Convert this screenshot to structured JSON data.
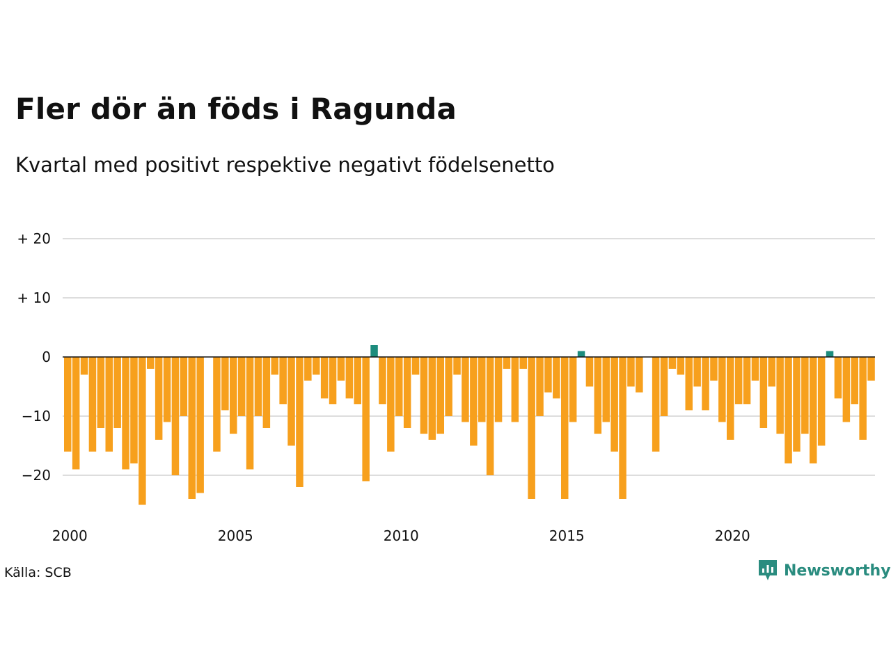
{
  "title": "Fler dör än föds i Ragunda",
  "subtitle": "Kvartal med positivt respektive negativt födelsenetto",
  "source": "Källa: SCB",
  "brand": "Newsworthy",
  "colors": {
    "negative": "#f7a01d",
    "positive": "#1c8c7d",
    "grid": "#dddddd",
    "zero_line": "#111111",
    "brand": "#2a8c7f"
  },
  "chart_data": {
    "type": "bar",
    "x_start": "2000 Q1",
    "ylim": [
      -25,
      20
    ],
    "y_ticks": [
      20,
      10,
      0,
      -10,
      -20
    ],
    "y_tick_labels": [
      "+ 20",
      "+ 10",
      "0",
      "−10",
      "−20"
    ],
    "x_tick_labels": [
      "2000",
      "2005",
      "2010",
      "2015",
      "2020"
    ],
    "values": [
      -16,
      -19,
      -3,
      -16,
      -12,
      -16,
      -12,
      -19,
      -18,
      -25,
      -2,
      -14,
      -11,
      -20,
      -10,
      -24,
      -23,
      0,
      -16,
      -9,
      -13,
      -10,
      -19,
      -10,
      -12,
      -3,
      -8,
      -15,
      -22,
      -4,
      -3,
      -7,
      -8,
      -4,
      -7,
      -8,
      -21,
      2,
      -8,
      -16,
      -10,
      -12,
      -3,
      -13,
      -14,
      -13,
      -10,
      -3,
      -11,
      -15,
      -11,
      -20,
      -11,
      -2,
      -11,
      -2,
      -24,
      -10,
      -6,
      -7,
      -24,
      -11,
      1,
      -5,
      -13,
      -11,
      -16,
      -24,
      -5,
      -6,
      0,
      -16,
      -10,
      -2,
      -3,
      -9,
      -5,
      -9,
      -4,
      -11,
      -14,
      -8,
      -8,
      -4,
      -12,
      -5,
      -13,
      -18,
      -16,
      -13,
      -18,
      -15,
      1,
      -7,
      -11,
      -8,
      -14,
      -4
    ],
    "grid": true,
    "legend": "none"
  }
}
